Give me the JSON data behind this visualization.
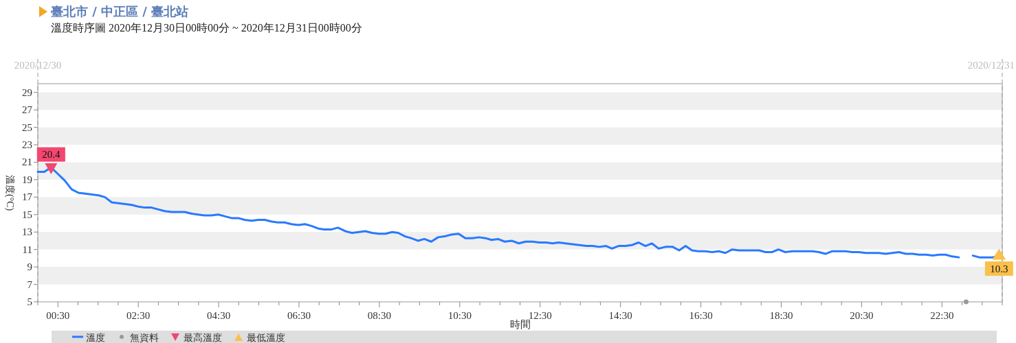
{
  "chart_data": {
    "type": "line",
    "title": "臺北市 / 中正區 / 臺北站",
    "subtitle": "溫度時序圖 2020年12月30日00時00分 ~ 2020年12月31日00時00分",
    "xlabel": "時間",
    "ylabel": "溫度(°C)",
    "xlim": [
      0,
      24
    ],
    "ylim": [
      5,
      30
    ],
    "yticks": [
      5,
      7,
      9,
      11,
      13,
      15,
      17,
      19,
      21,
      23,
      25,
      27,
      29
    ],
    "xticks": [
      {
        "value": 0,
        "label": null
      },
      {
        "value": 0.5,
        "label": "00:30"
      },
      {
        "value": 1,
        "label": null
      },
      {
        "value": 1.5,
        "label": null
      },
      {
        "value": 2,
        "label": null
      },
      {
        "value": 2.5,
        "label": "02:30"
      },
      {
        "value": 3,
        "label": null
      },
      {
        "value": 3.5,
        "label": null
      },
      {
        "value": 4,
        "label": null
      },
      {
        "value": 4.5,
        "label": "04:30"
      },
      {
        "value": 5,
        "label": null
      },
      {
        "value": 5.5,
        "label": null
      },
      {
        "value": 6,
        "label": null
      },
      {
        "value": 6.5,
        "label": "06:30"
      },
      {
        "value": 7,
        "label": null
      },
      {
        "value": 7.5,
        "label": null
      },
      {
        "value": 8,
        "label": null
      },
      {
        "value": 8.5,
        "label": "08:30"
      },
      {
        "value": 9,
        "label": null
      },
      {
        "value": 9.5,
        "label": null
      },
      {
        "value": 10,
        "label": null
      },
      {
        "value": 10.5,
        "label": "10:30"
      },
      {
        "value": 11,
        "label": null
      },
      {
        "value": 11.5,
        "label": null
      },
      {
        "value": 12,
        "label": null
      },
      {
        "value": 12.5,
        "label": "12:30"
      },
      {
        "value": 13,
        "label": null
      },
      {
        "value": 13.5,
        "label": null
      },
      {
        "value": 14,
        "label": null
      },
      {
        "value": 14.5,
        "label": "14:30"
      },
      {
        "value": 15,
        "label": null
      },
      {
        "value": 15.5,
        "label": null
      },
      {
        "value": 16,
        "label": null
      },
      {
        "value": 16.5,
        "label": "16:30"
      },
      {
        "value": 17,
        "label": null
      },
      {
        "value": 17.5,
        "label": null
      },
      {
        "value": 18,
        "label": null
      },
      {
        "value": 18.5,
        "label": "18:30"
      },
      {
        "value": 19,
        "label": null
      },
      {
        "value": 19.5,
        "label": null
      },
      {
        "value": 20,
        "label": null
      },
      {
        "value": 20.5,
        "label": "20:30"
      },
      {
        "value": 21,
        "label": null
      },
      {
        "value": 21.5,
        "label": null
      },
      {
        "value": 22,
        "label": null
      },
      {
        "value": 22.5,
        "label": "22:30"
      },
      {
        "value": 23,
        "label": null
      },
      {
        "value": 23.5,
        "label": null
      },
      {
        "value": 24,
        "label": null
      }
    ],
    "bands": [
      {
        "axis": "y",
        "from": 7,
        "to": 9,
        "color": "#efefef"
      },
      {
        "axis": "y",
        "from": 11,
        "to": 13,
        "color": "#efefef"
      },
      {
        "axis": "y",
        "from": 15,
        "to": 17,
        "color": "#efefef"
      },
      {
        "axis": "y",
        "from": 19,
        "to": 21,
        "color": "#efefef"
      },
      {
        "axis": "y",
        "from": 23,
        "to": 25,
        "color": "#efefef"
      },
      {
        "axis": "y",
        "from": 27,
        "to": 29,
        "color": "#efefef"
      }
    ],
    "ref_lines": [
      {
        "axis": "x",
        "value": 0,
        "color": "#cccccc",
        "line_style": "dashed"
      },
      {
        "axis": "x",
        "value": 24,
        "color": "#cccccc",
        "line_style": "dashed"
      }
    ],
    "annotations": [
      "2020/12/30",
      "2020/12/31"
    ],
    "legend": "bottom",
    "grid": false,
    "series": [
      {
        "name": "溫度",
        "color": "#2979ff",
        "marker": "none",
        "line_style": "solid",
        "x": [
          0,
          0.16,
          0.33,
          0.49,
          0.67,
          0.84,
          1.01,
          1.18,
          1.34,
          1.51,
          1.67,
          1.84,
          2.01,
          2.18,
          2.34,
          2.51,
          2.66,
          2.83,
          2.99,
          3.16,
          3.33,
          3.66,
          3.83,
          3.98,
          4.15,
          4.32,
          4.49,
          4.66,
          4.82,
          4.99,
          5.15,
          5.32,
          5.49,
          5.65,
          5.82,
          5.97,
          6.14,
          6.31,
          6.48,
          6.65,
          6.81,
          6.98,
          7.13,
          7.31,
          7.47,
          7.65,
          7.82,
          7.99,
          8.15,
          8.32,
          8.49,
          8.65,
          8.82,
          8.97,
          9.14,
          9.29,
          9.46,
          9.62,
          9.79,
          9.96,
          10.12,
          10.29,
          10.47,
          10.64,
          10.81,
          10.98,
          11.14,
          11.29,
          11.45,
          11.62,
          11.79,
          11.97,
          12.14,
          12.31,
          12.48,
          12.65,
          12.81,
          12.96,
          13.13,
          13.3,
          13.48,
          13.65,
          13.81,
          13.97,
          14.14,
          14.29,
          14.45,
          14.62,
          14.78,
          14.95,
          15.12,
          15.28,
          15.45,
          15.62,
          15.8,
          15.96,
          16.12,
          16.28,
          16.44,
          16.61,
          16.78,
          16.95,
          17.11,
          17.28,
          17.45,
          17.62,
          17.79,
          17.95,
          18.11,
          18.27,
          18.43,
          18.6,
          18.77,
          18.94,
          19.11,
          19.28,
          19.44,
          19.6,
          19.77,
          19.94,
          20.1,
          20.27,
          20.43,
          20.6,
          20.77,
          20.93,
          21.1,
          21.26,
          21.43,
          21.6,
          21.77,
          21.93,
          22.1,
          22.27,
          22.43,
          22.59,
          22.75,
          22.92,
          23.1,
          23.27,
          23.43,
          23.6,
          23.76,
          23.92
        ],
        "values": [
          19.9,
          19.9,
          20.4,
          19.7,
          18.9,
          17.9,
          17.5,
          17.4,
          17.3,
          17.2,
          17.0,
          16.4,
          16.3,
          16.2,
          16.1,
          15.9,
          15.8,
          15.8,
          15.6,
          15.4,
          15.3,
          15.3,
          15.1,
          15.0,
          14.9,
          14.9,
          15.0,
          14.8,
          14.6,
          14.6,
          14.4,
          14.3,
          14.4,
          14.4,
          14.2,
          14.1,
          14.1,
          13.9,
          13.8,
          13.9,
          13.7,
          13.4,
          13.3,
          13.3,
          13.5,
          13.1,
          12.9,
          13.0,
          13.1,
          12.9,
          12.8,
          12.8,
          13.0,
          12.9,
          12.5,
          12.3,
          12.0,
          12.2,
          11.9,
          12.4,
          12.5,
          12.7,
          12.8,
          12.3,
          12.3,
          12.4,
          12.3,
          12.1,
          12.2,
          11.9,
          12.0,
          11.7,
          11.9,
          11.9,
          11.8,
          11.8,
          11.7,
          11.8,
          11.7,
          11.6,
          11.5,
          11.4,
          11.4,
          11.3,
          11.4,
          11.1,
          11.4,
          11.4,
          11.5,
          11.8,
          11.4,
          11.7,
          11.1,
          11.3,
          11.3,
          10.9,
          11.4,
          10.9,
          10.8,
          10.8,
          10.7,
          10.8,
          10.6,
          11.0,
          10.9,
          10.9,
          10.9,
          10.9,
          10.7,
          10.7,
          11.0,
          10.7,
          10.8,
          10.8,
          10.8,
          10.8,
          10.7,
          10.5,
          10.8,
          10.8,
          10.8,
          10.7,
          10.7,
          10.6,
          10.6,
          10.6,
          10.5,
          10.6,
          10.7,
          10.5,
          10.5,
          10.4,
          10.4,
          10.3,
          10.4,
          10.4,
          10.2,
          10.1,
          null,
          10.3,
          10.1,
          10.1,
          10.1,
          10.3
        ]
      },
      {
        "name": "無資料",
        "type": "scatter",
        "color": "#999999",
        "marker": "circle",
        "x": [
          23.1
        ],
        "values": [
          5
        ]
      },
      {
        "name": "最高溫度",
        "type": "scatter",
        "color": "#f2476f",
        "marker": "triangle",
        "x": [
          0.33
        ],
        "values": [
          20.4
        ],
        "value_labels": [
          "20.4"
        ]
      },
      {
        "name": "最低溫度",
        "type": "scatter",
        "color": "#f9c04b",
        "marker": "triangle",
        "x": [
          23.92
        ],
        "values": [
          10.3
        ],
        "value_labels": [
          "10.3"
        ]
      }
    ]
  }
}
